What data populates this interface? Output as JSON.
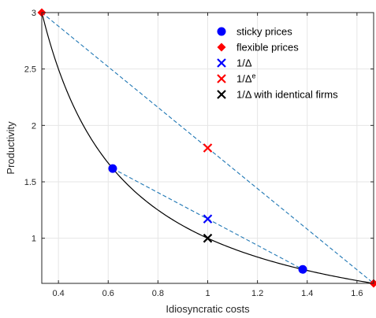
{
  "chart_data": {
    "type": "line",
    "xlabel": "Idiosyncratic costs",
    "ylabel": "Productivity",
    "xlim": [
      0.333,
      1.667
    ],
    "ylim": [
      0.6,
      3.0
    ],
    "xticks": [
      0.4,
      0.6,
      0.8,
      1,
      1.2,
      1.4,
      1.6
    ],
    "xtick_labels": [
      "0.4",
      "0.6",
      "0.8",
      "1",
      "1.2",
      "1.4",
      "1.6"
    ],
    "yticks": [
      1,
      1.5,
      2,
      2.5,
      3
    ],
    "ytick_labels": [
      "1",
      "1.5",
      "2",
      "2.5",
      "3"
    ],
    "grid": true,
    "legend_position": "top-right",
    "curve": {
      "function": "1/x",
      "color": "#000000",
      "x_range": [
        0.333,
        1.667
      ]
    },
    "dashed_lines": [
      {
        "points": [
          [
            0.333,
            3.0
          ],
          [
            1.667,
            0.6
          ]
        ],
        "color": "#1f77b4"
      },
      {
        "points": [
          [
            0.618,
            1.618
          ],
          [
            1.382,
            0.724
          ]
        ],
        "color": "#1f77b4"
      }
    ],
    "series": [
      {
        "name": "sticky prices",
        "marker": "circle",
        "color": "#0000ff",
        "points": [
          [
            0.618,
            1.618
          ],
          [
            1.382,
            0.724
          ]
        ]
      },
      {
        "name": "flexible prices",
        "marker": "diamond",
        "color": "#ff0000",
        "points": [
          [
            0.333,
            3.0
          ],
          [
            1.667,
            0.6
          ]
        ]
      },
      {
        "name": "1/Δ",
        "marker": "x",
        "color": "#0000ff",
        "points": [
          [
            1.0,
            1.171
          ]
        ]
      },
      {
        "name": "1/Δ",
        "name_superscript": "e",
        "marker": "x",
        "color": "#ff0000",
        "points": [
          [
            1.0,
            1.8
          ]
        ]
      },
      {
        "name": "1/Δ with identical firms",
        "marker": "x",
        "color": "#000000",
        "points": [
          [
            1.0,
            1.0
          ]
        ]
      }
    ]
  }
}
